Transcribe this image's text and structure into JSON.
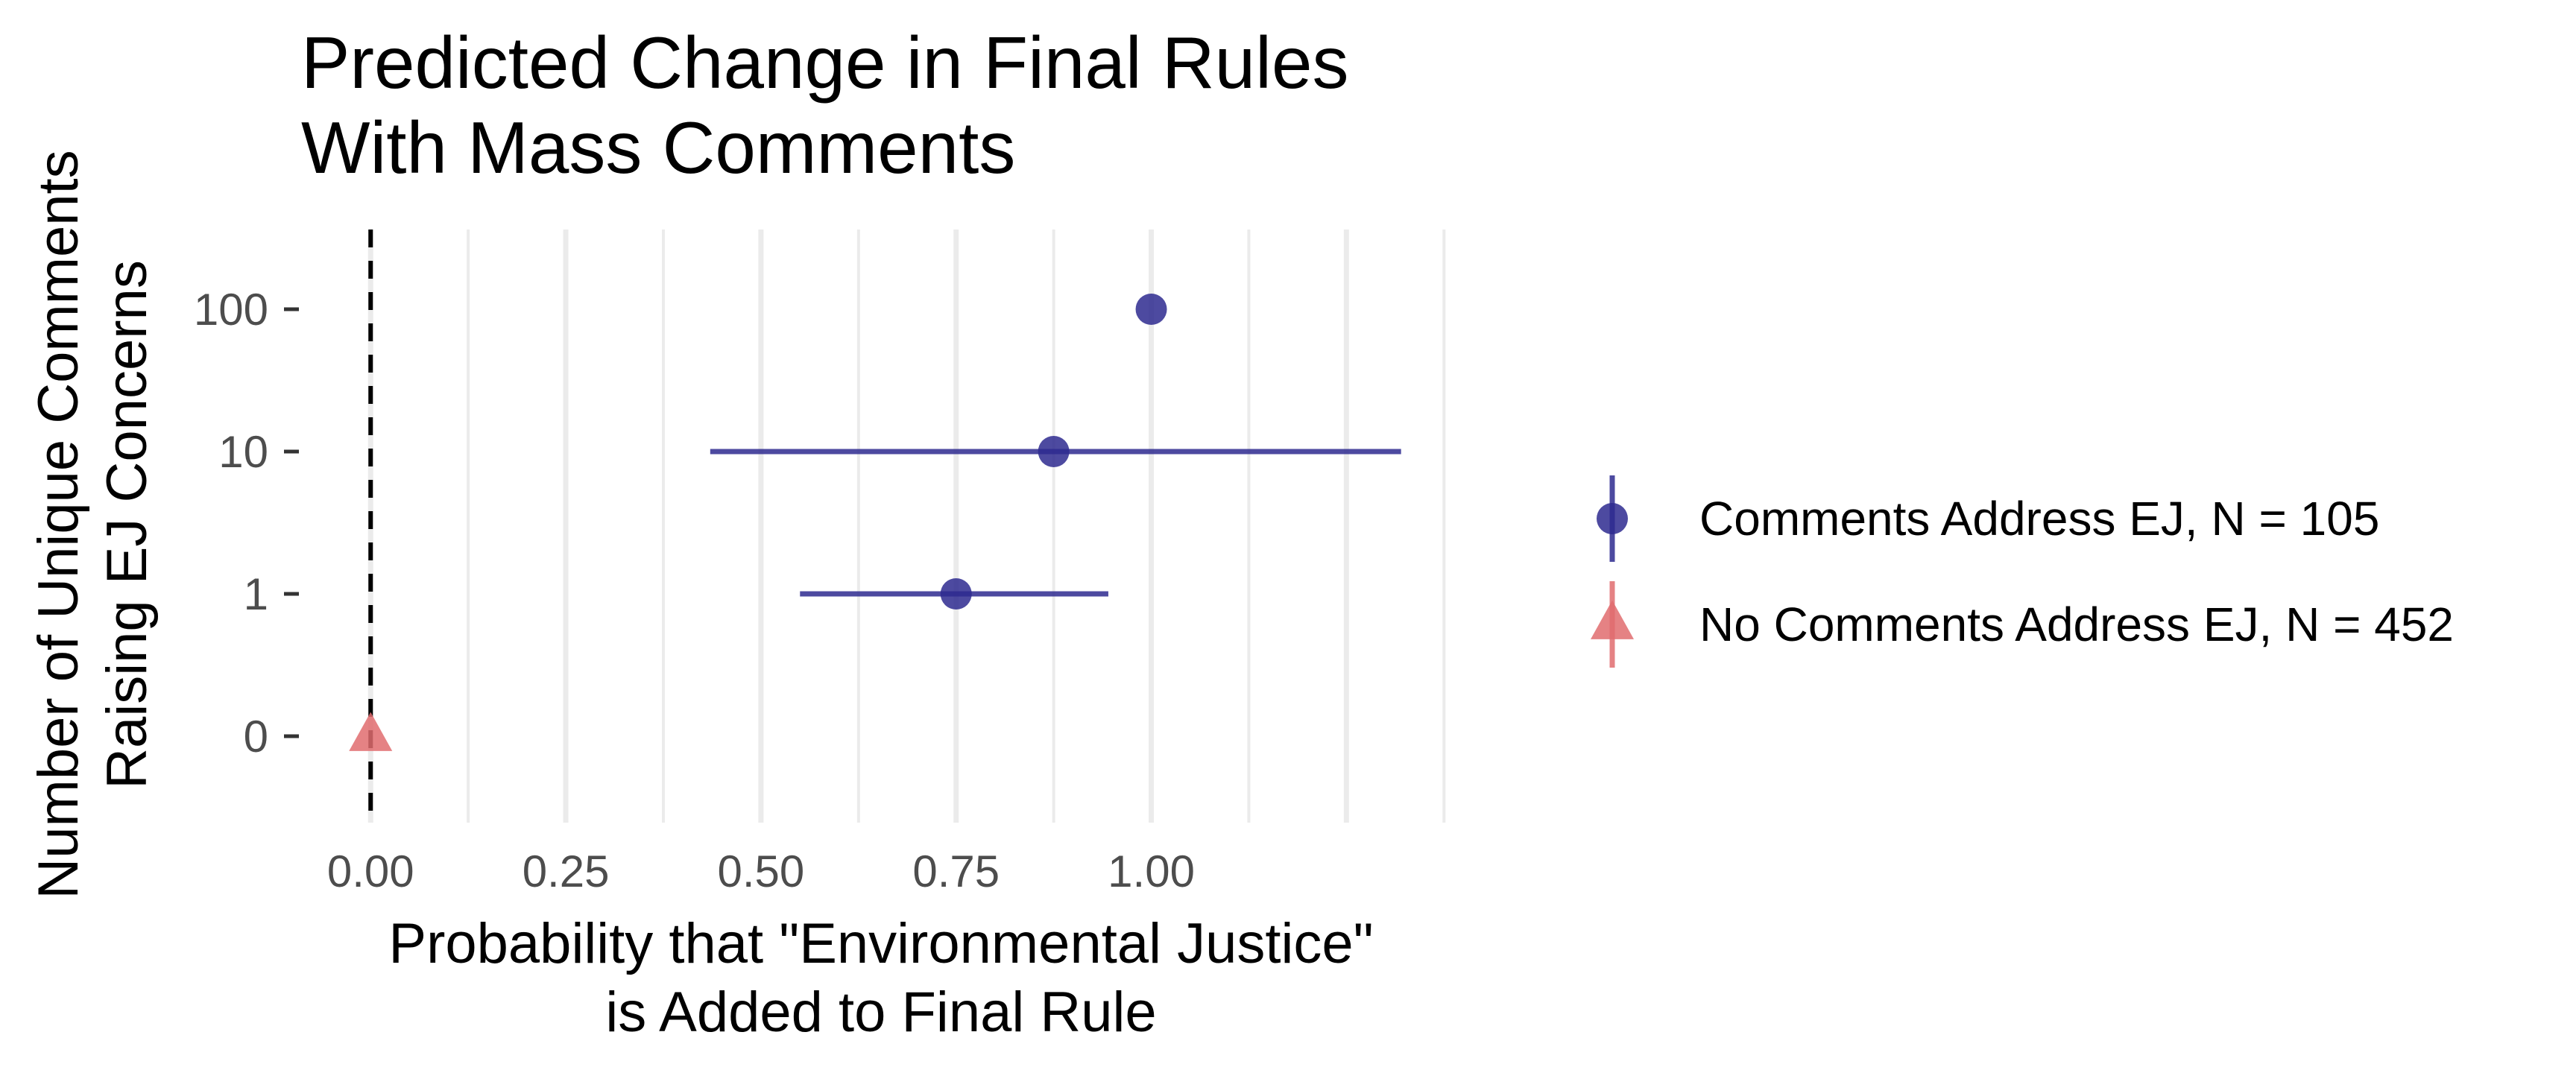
{
  "chart_data": {
    "type": "scatter",
    "title": [
      "Predicted Change in Final Rules",
      "With Mass Comments"
    ],
    "xlabel": [
      "Probability that \"Environmental Justice\"",
      "is Added to Final Rule"
    ],
    "ylabel": [
      "Number of Unique Comments",
      "Raising EJ Concerns"
    ],
    "x_ticks": [
      "0.00",
      "0.25",
      "0.50",
      "0.75",
      "1.00"
    ],
    "x_tick_values": [
      0,
      0.25,
      0.5,
      0.75,
      1.0
    ],
    "x_range": [
      -0.09,
      1.39
    ],
    "y_categories": [
      "0",
      "1",
      "10",
      "100"
    ],
    "reference_line": {
      "x": 0,
      "style": "dashed"
    },
    "grid": "vertical",
    "legend_position": "right",
    "series": [
      {
        "name": "Comments Address EJ, N = 105",
        "marker": "circle",
        "color": "#2e2a8f",
        "points": [
          {
            "y": "1",
            "x": 0.75,
            "low": 0.55,
            "high": 0.945
          },
          {
            "y": "10",
            "x": 0.875,
            "low": 0.435,
            "high": 1.32
          },
          {
            "y": "100",
            "x": 1.0,
            "low": 1.0,
            "high": 1.0
          }
        ]
      },
      {
        "name": "No Comments Address EJ, N = 452",
        "marker": "triangle",
        "color": "#e06c6e",
        "points": [
          {
            "y": "0",
            "x": 0.0,
            "low": 0.0,
            "high": 0.0
          }
        ]
      }
    ]
  }
}
